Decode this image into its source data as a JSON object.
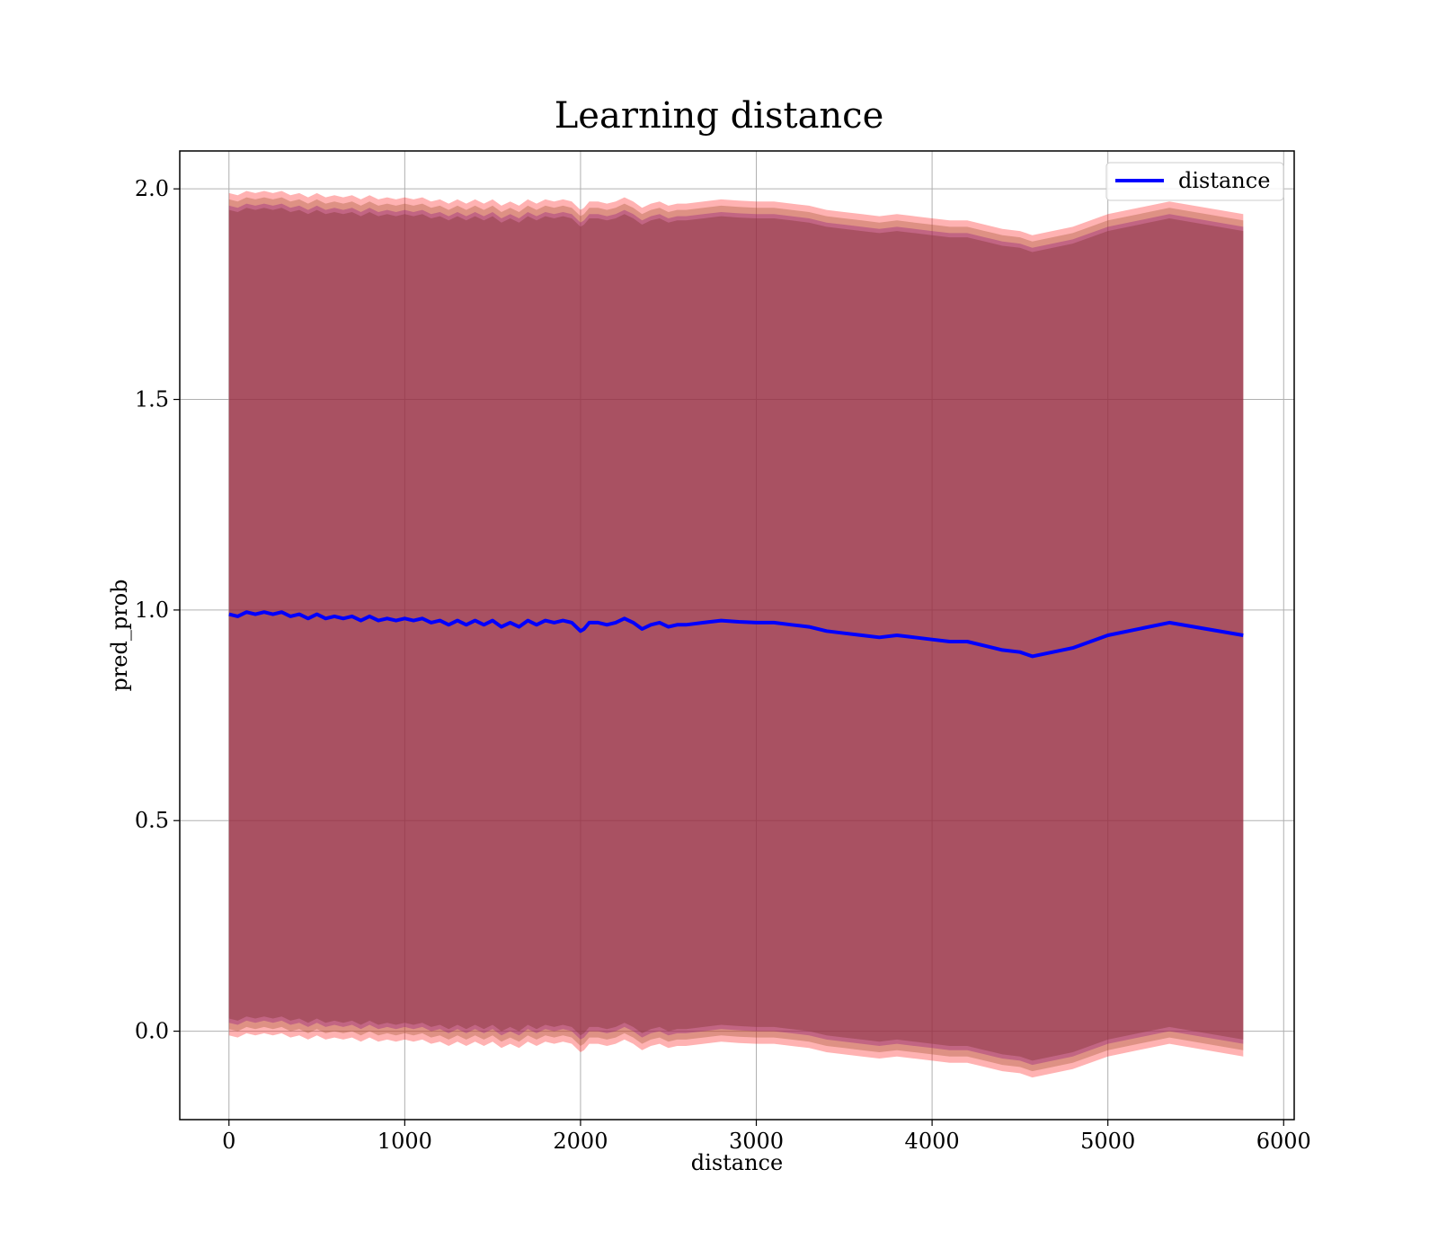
{
  "chart_data": {
    "type": "line",
    "title": "Learning distance",
    "xlabel": "distance",
    "ylabel": "pred_prob",
    "xlim": [
      -280,
      6060
    ],
    "ylim": [
      -0.21,
      2.09
    ],
    "xticks": [
      0,
      1000,
      2000,
      3000,
      4000,
      5000,
      6000
    ],
    "xtick_labels": [
      "0",
      "1000",
      "2000",
      "3000",
      "4000",
      "5000",
      "6000"
    ],
    "yticks": [
      0.0,
      0.5,
      1.0,
      1.5,
      2.0
    ],
    "ytick_labels": [
      "0.0",
      "0.5",
      "1.0",
      "1.5",
      "2.0"
    ],
    "grid": true,
    "legend_position": "top-right",
    "series": [
      {
        "name": "distance",
        "color": "#0000ff",
        "x": [
          0,
          50,
          100,
          150,
          200,
          250,
          300,
          350,
          400,
          450,
          500,
          550,
          600,
          650,
          700,
          750,
          800,
          850,
          900,
          950,
          1000,
          1050,
          1100,
          1150,
          1200,
          1250,
          1300,
          1350,
          1400,
          1450,
          1500,
          1550,
          1600,
          1650,
          1700,
          1750,
          1800,
          1850,
          1900,
          1950,
          2000,
          2020,
          2050,
          2100,
          2150,
          2200,
          2250,
          2300,
          2350,
          2400,
          2450,
          2500,
          2550,
          2600,
          2700,
          2800,
          2900,
          3000,
          3100,
          3200,
          3300,
          3400,
          3500,
          3600,
          3700,
          3800,
          3900,
          4000,
          4100,
          4200,
          4300,
          4350,
          4400,
          4500,
          4570,
          4800,
          5000,
          5350,
          5770
        ],
        "y": [
          0.99,
          0.985,
          0.995,
          0.99,
          0.995,
          0.99,
          0.995,
          0.985,
          0.99,
          0.98,
          0.99,
          0.98,
          0.985,
          0.98,
          0.985,
          0.975,
          0.985,
          0.975,
          0.98,
          0.975,
          0.98,
          0.975,
          0.98,
          0.97,
          0.975,
          0.965,
          0.975,
          0.965,
          0.975,
          0.965,
          0.975,
          0.96,
          0.97,
          0.96,
          0.975,
          0.965,
          0.975,
          0.97,
          0.975,
          0.97,
          0.95,
          0.955,
          0.97,
          0.97,
          0.965,
          0.97,
          0.98,
          0.97,
          0.955,
          0.965,
          0.97,
          0.96,
          0.965,
          0.965,
          0.97,
          0.975,
          0.972,
          0.97,
          0.97,
          0.965,
          0.96,
          0.95,
          0.945,
          0.94,
          0.935,
          0.94,
          0.935,
          0.93,
          0.925,
          0.925,
          0.915,
          0.91,
          0.905,
          0.9,
          0.89,
          0.91,
          0.94,
          0.97,
          0.94
        ]
      }
    ],
    "bands": [
      {
        "color": "#ff0000",
        "opacity": 0.3,
        "offset_upper": 1.0,
        "offset_lower": 1.0
      },
      {
        "color": "#a0522d",
        "opacity": 0.35,
        "offset_upper": 0.985,
        "offset_lower": 0.985
      },
      {
        "color": "#800080",
        "opacity": 0.3,
        "offset_upper": 0.97,
        "offset_lower": 0.97
      },
      {
        "color": "#8b3a3a",
        "opacity": 0.45,
        "offset_upper": 0.96,
        "offset_lower": 0.96
      }
    ]
  }
}
